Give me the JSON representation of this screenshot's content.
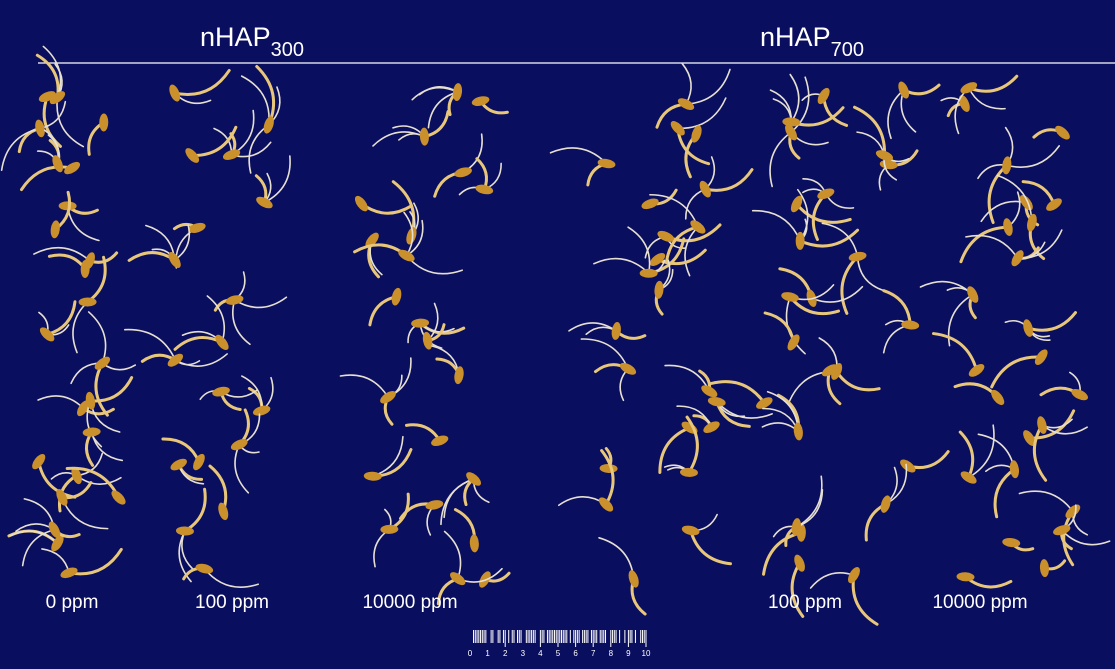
{
  "headers": [
    {
      "text": "nHAP",
      "subscript": "300"
    },
    {
      "text": "nHAP",
      "subscript": "700"
    }
  ],
  "labels": [
    "0 ppm",
    "100 ppm",
    "10000 ppm",
    "100 ppm",
    "10000 ppm"
  ],
  "scale": [
    0,
    1,
    2,
    3,
    4,
    5,
    6,
    7,
    8,
    9,
    10
  ]
}
